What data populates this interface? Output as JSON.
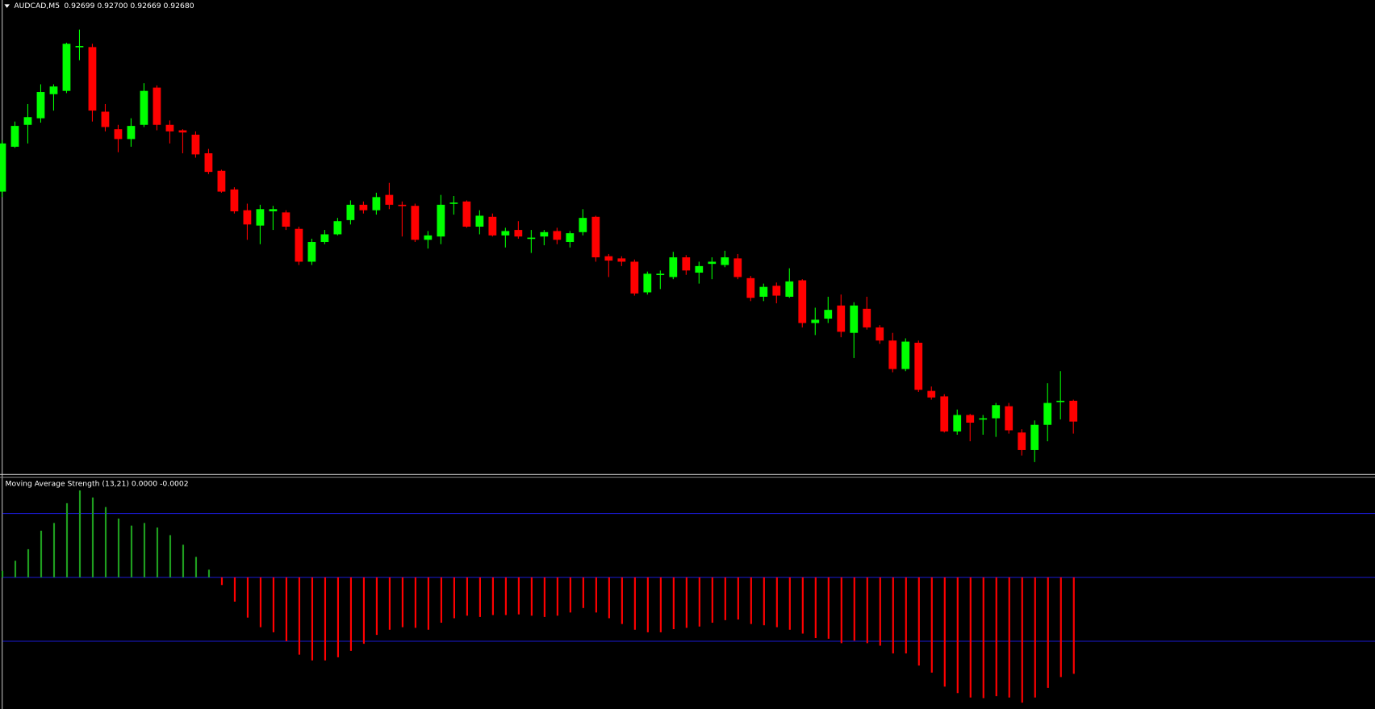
{
  "chart_data": [
    {
      "type": "candlestick",
      "title": "AUDCAD,M5",
      "ohlc_label": "0.92699 0.92700 0.92669 0.92680",
      "up_color": "#00ff00",
      "down_color": "#ff0000",
      "open": [
        0.9289,
        0.92931,
        0.92951,
        0.92957,
        0.92979,
        0.92982,
        0.93022,
        0.93022,
        0.92963,
        0.92947,
        0.92938,
        0.92951,
        0.92985,
        0.92951,
        0.92946,
        0.92942,
        0.92925,
        0.92909,
        0.92892,
        0.92873,
        0.92859,
        0.92872,
        0.92871,
        0.92856,
        0.92826,
        0.92844,
        0.92851,
        0.92864,
        0.92878,
        0.92873,
        0.92887,
        0.92878,
        0.92877,
        0.92846,
        0.92849,
        0.92879,
        0.92881,
        0.92858,
        0.92867,
        0.9285,
        0.92855,
        0.92847,
        0.92849,
        0.92854,
        0.92844,
        0.92853,
        0.92867,
        0.92831,
        0.92829,
        0.92826,
        0.92798,
        0.92814,
        0.92812,
        0.9283,
        0.92816,
        0.92824,
        0.92823,
        0.92829,
        0.92811,
        0.92794,
        0.92804,
        0.92794,
        0.92809,
        0.9277,
        0.92774,
        0.92786,
        0.92761,
        0.92783,
        0.92766,
        0.92754,
        0.92728,
        0.92752,
        0.92708,
        0.92703,
        0.92671,
        0.92686,
        0.92682,
        0.92683,
        0.92694,
        0.9267,
        0.92654,
        0.92677,
        0.92698,
        0.92699
      ],
      "high": [
        0.92937,
        0.92954,
        0.9297,
        0.92988,
        0.92988,
        0.93026,
        0.93038,
        0.93025,
        0.9297,
        0.92951,
        0.92957,
        0.92989,
        0.92987,
        0.92955,
        0.92947,
        0.92945,
        0.92929,
        0.9291,
        0.92894,
        0.92879,
        0.92878,
        0.92877,
        0.92873,
        0.92858,
        0.92847,
        0.92855,
        0.92866,
        0.92882,
        0.92881,
        0.92889,
        0.92898,
        0.92881,
        0.92879,
        0.92854,
        0.92887,
        0.92886,
        0.92882,
        0.92873,
        0.9287,
        0.92857,
        0.92863,
        0.92855,
        0.92855,
        0.92857,
        0.92854,
        0.92874,
        0.92868,
        0.92833,
        0.92831,
        0.92828,
        0.92817,
        0.92818,
        0.92835,
        0.92832,
        0.92826,
        0.9283,
        0.92836,
        0.92833,
        0.92813,
        0.92806,
        0.92807,
        0.9282,
        0.9281,
        0.92784,
        0.92794,
        0.92796,
        0.92789,
        0.92794,
        0.92768,
        0.92761,
        0.92756,
        0.92754,
        0.92712,
        0.92705,
        0.92691,
        0.92687,
        0.92686,
        0.92697,
        0.92697,
        0.92673,
        0.92681,
        0.92715,
        0.92726,
        0.927
      ],
      "low": [
        0.92885,
        0.9293,
        0.92934,
        0.92953,
        0.92964,
        0.9298,
        0.9301,
        0.92954,
        0.92945,
        0.92926,
        0.92931,
        0.92949,
        0.92946,
        0.92934,
        0.92925,
        0.92921,
        0.92906,
        0.92889,
        0.9287,
        0.92846,
        0.92842,
        0.92855,
        0.92855,
        0.92823,
        0.92823,
        0.92842,
        0.9285,
        0.9286,
        0.9287,
        0.92869,
        0.92874,
        0.92849,
        0.92844,
        0.92838,
        0.92842,
        0.92869,
        0.92857,
        0.92851,
        0.92849,
        0.92839,
        0.92847,
        0.92834,
        0.92841,
        0.92842,
        0.92839,
        0.9285,
        0.92826,
        0.92812,
        0.92822,
        0.92795,
        0.92796,
        0.92801,
        0.9281,
        0.92814,
        0.92806,
        0.9281,
        0.92821,
        0.9281,
        0.9279,
        0.9279,
        0.92788,
        0.92793,
        0.92766,
        0.92759,
        0.9277,
        0.92757,
        0.92738,
        0.92764,
        0.92751,
        0.92725,
        0.92726,
        0.92707,
        0.927,
        0.9267,
        0.92668,
        0.92662,
        0.92668,
        0.92666,
        0.92669,
        0.92649,
        0.92643,
        0.92662,
        0.92682,
        0.92669
      ],
      "close": [
        0.92934,
        0.9295,
        0.92958,
        0.92981,
        0.92986,
        0.93025,
        0.93023,
        0.92964,
        0.92949,
        0.92938,
        0.9295,
        0.92982,
        0.92951,
        0.92945,
        0.92944,
        0.92924,
        0.92908,
        0.9289,
        0.92872,
        0.9286,
        0.92874,
        0.92874,
        0.92858,
        0.92826,
        0.92844,
        0.92851,
        0.92863,
        0.92878,
        0.92873,
        0.92885,
        0.92878,
        0.92877,
        0.92846,
        0.9285,
        0.92878,
        0.9288,
        0.92858,
        0.92868,
        0.9285,
        0.92854,
        0.92849,
        0.92848,
        0.92853,
        0.92846,
        0.92852,
        0.92866,
        0.9283,
        0.92827,
        0.92826,
        0.92797,
        0.92815,
        0.92815,
        0.9283,
        0.92818,
        0.92822,
        0.92826,
        0.9283,
        0.92812,
        0.92793,
        0.92803,
        0.92795,
        0.92808,
        0.9277,
        0.92773,
        0.92782,
        0.92762,
        0.92786,
        0.92766,
        0.92754,
        0.92728,
        0.92753,
        0.92709,
        0.92702,
        0.92671,
        0.92686,
        0.92679,
        0.92683,
        0.92695,
        0.92672,
        0.92654,
        0.92677,
        0.92697,
        0.92699,
        0.9268
      ],
      "ylim": [
        0.92632,
        0.93065
      ]
    },
    {
      "type": "histogram",
      "title": "Moving Average Strength (13,21) 0.0000 -0.0002",
      "positive_color": "#1f9e1f",
      "negative_color": "#ff0000",
      "level_color": "#1a1ad0",
      "levels": [
        0.0001,
        0,
        -0.0001
      ],
      "values": [
        1e-05,
        2.6e-05,
        4.4e-05,
        7.3e-05,
        8.5e-05,
        0.000116,
        0.000136,
        0.000125,
        0.00011,
        9.2e-05,
        8.1e-05,
        8.5e-05,
        7.8e-05,
        6.6e-05,
        5.1e-05,
        3.2e-05,
        1.2e-05,
        -1.2e-05,
        -3.8e-05,
        -6.3e-05,
        -7.8e-05,
        -8.6e-05,
        -0.0001,
        -0.000121,
        -0.00013,
        -0.00013,
        -0.000125,
        -0.000115,
        -0.000104,
        -9e-05,
        -8.2e-05,
        -7.8e-05,
        -7.9e-05,
        -8.2e-05,
        -7.1e-05,
        -6.4e-05,
        -6e-05,
        -6.2e-05,
        -5.9e-05,
        -5.9e-05,
        -5.8e-05,
        -6e-05,
        -6.2e-05,
        -6e-05,
        -5.5e-05,
        -4.8e-05,
        -5.5e-05,
        -6.4e-05,
        -7.3e-05,
        -8.2e-05,
        -8.6e-05,
        -8.6e-05,
        -8.1e-05,
        -7.9e-05,
        -7.7e-05,
        -7.1e-05,
        -6.7e-05,
        -6.6e-05,
        -7.3e-05,
        -7.5e-05,
        -7.8e-05,
        -8.2e-05,
        -8.8e-05,
        -9.5e-05,
        -9.6e-05,
        -0.000103,
        -9.9e-05,
        -0.000103,
        -0.000107,
        -0.000119,
        -0.000119,
        -0.000138,
        -0.000149,
        -0.000171,
        -0.000181,
        -0.000188,
        -0.000189,
        -0.000186,
        -0.000188,
        -0.000196,
        -0.000188,
        -0.000173,
        -0.000156,
        -0.000151
      ],
      "ylim": [
        -0.000206,
        0.000156
      ]
    }
  ]
}
